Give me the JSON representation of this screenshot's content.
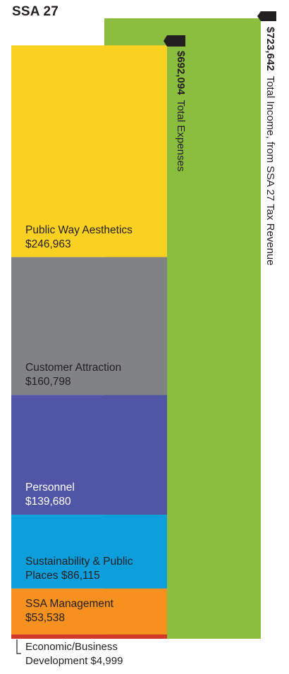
{
  "title": "SSA 27",
  "income": {
    "amount": "$723,642",
    "label": "Total Income, from SSA 27 Tax Revenue",
    "value": 723642,
    "color": "#8bbe3f"
  },
  "expenses_total": {
    "amount": "$692,094",
    "label": "Total Expenses",
    "value": 692094
  },
  "chart_data": {
    "type": "bar",
    "title": "SSA 27",
    "categories": [
      "Total Income, from SSA 27 Tax Revenue",
      "Total Expenses"
    ],
    "series": [
      {
        "name": "Public Way Aesthetics",
        "values": [
          null,
          246963
        ],
        "color": "#fbd121",
        "amount_text": "$246,963",
        "text_color": "#231f20"
      },
      {
        "name": "Customer Attraction",
        "values": [
          null,
          160798
        ],
        "color": "#818285",
        "amount_text": "$160,798",
        "text_color": "#231f20"
      },
      {
        "name": "Personnel",
        "values": [
          null,
          139680
        ],
        "color": "#5155a5",
        "amount_text": "$139,680",
        "text_color": "#ffffff"
      },
      {
        "name": "Sustainability & Public Places",
        "values": [
          null,
          86115
        ],
        "color": "#0d9edc",
        "amount_text": "$86,115",
        "text_color": "#231f20"
      },
      {
        "name": "SSA Management",
        "values": [
          null,
          53538
        ],
        "color": "#f6901e",
        "amount_text": "$53,538",
        "text_color": "#231f20"
      },
      {
        "name": "Economic/Business Development",
        "values": [
          null,
          4999
        ],
        "color": "#d2382a",
        "amount_text": "$4,999",
        "text_color": "#231f20"
      },
      {
        "name": "Total Income, from SSA 27 Tax Revenue",
        "values": [
          723642,
          null
        ],
        "color": "#8bbe3f"
      }
    ],
    "stacked": true,
    "totals": {
      "income": 723642,
      "expenses": 692094
    },
    "xlabel": "",
    "ylabel": "",
    "grid": false,
    "legend": "none"
  },
  "segment_labels": [
    {
      "name": "Public Way Aesthetics",
      "amount": "$246,963"
    },
    {
      "name": "Customer Attraction",
      "amount": "$160,798"
    },
    {
      "name": "Personnel",
      "amount": "$139,680"
    },
    {
      "name": "Sustainability & Public",
      "amount": "Places  $86,115"
    },
    {
      "name": "SSA Management",
      "amount": "$53,538"
    },
    {
      "name": "Economic/Business",
      "amount": "Development $4,999"
    }
  ]
}
